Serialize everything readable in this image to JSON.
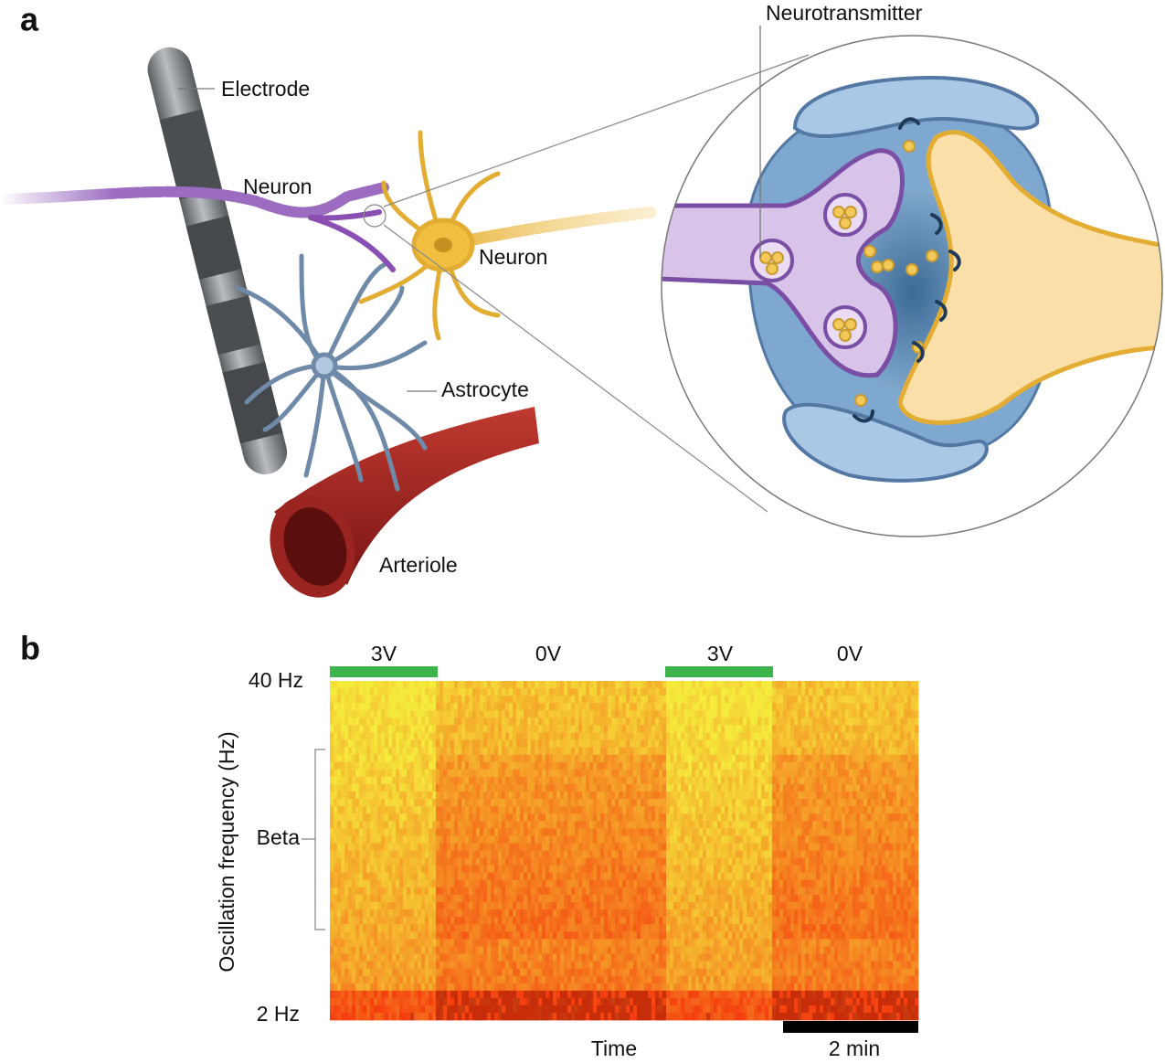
{
  "panel_a": {
    "label": "a",
    "labels": {
      "electrode": "Electrode",
      "neuron_left": "Neuron",
      "neuron_right": "Neuron",
      "neurotransmitter": "Neurotransmitter",
      "astrocyte": "Astrocyte",
      "arteriole": "Arteriole"
    }
  },
  "panel_b": {
    "label": "b",
    "stimulation": [
      "3V",
      "0V",
      "3V",
      "0V"
    ],
    "y_axis": {
      "title": "Oscillation frequency (Hz)",
      "top": "40 Hz",
      "bottom": "2 Hz",
      "band": "Beta"
    },
    "x_axis": {
      "title": "Time"
    },
    "scale_bar": "2 min"
  }
}
